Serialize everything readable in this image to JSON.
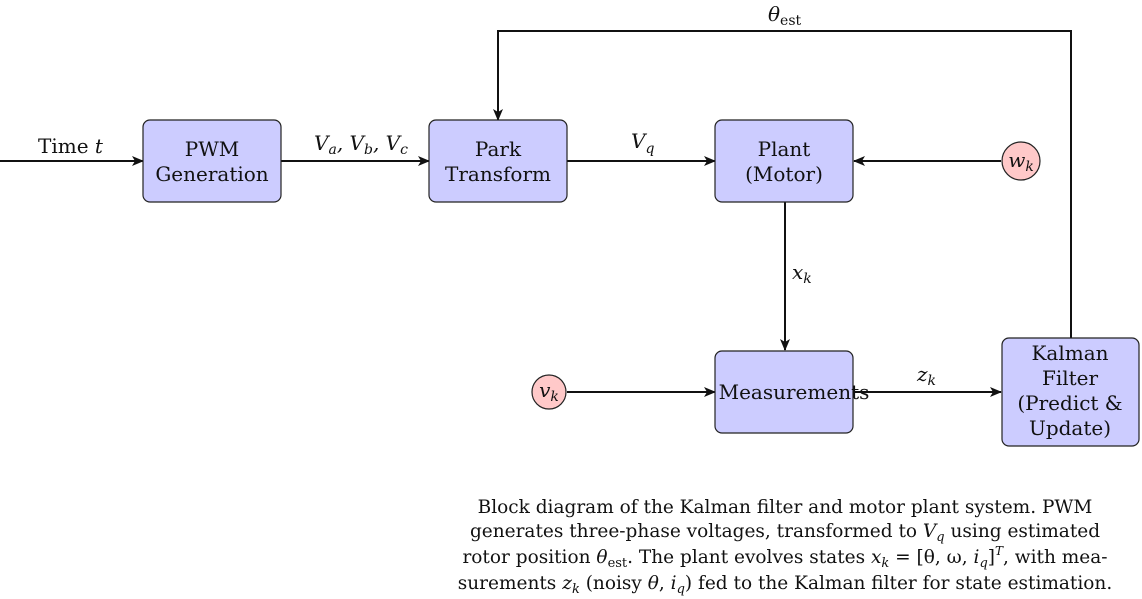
{
  "diagram": {
    "blocks": {
      "pwm": [
        "PWM",
        "Generation"
      ],
      "park": [
        "Park",
        "Transform"
      ],
      "plant": [
        "Plant",
        "(Motor)"
      ],
      "measurements": [
        "Measurements"
      ],
      "kalman": [
        "Kalman",
        "Filter",
        "(Predict &",
        "Update)"
      ]
    },
    "noise": {
      "w": {
        "base": "w",
        "sub": "k"
      },
      "v": {
        "base": "v",
        "sub": "k"
      }
    },
    "edge_labels": {
      "time": {
        "text": "Time ",
        "var": "t"
      },
      "vabc": [
        "V",
        "a",
        "V",
        "b",
        "V",
        "c"
      ],
      "vq": {
        "base": "V",
        "sub": "q"
      },
      "xk": {
        "base": "x",
        "sub": "k"
      },
      "zk": {
        "base": "z",
        "sub": "k"
      },
      "theta_est": {
        "base": "θ",
        "sub": "est"
      }
    },
    "colors": {
      "block_fill": "#ccccff",
      "noise_fill": "#ffc9c9",
      "stroke": "#111111"
    }
  },
  "caption": {
    "l1": "Block diagram of the Kalman filter and motor plant system.  PWM",
    "l2a": "generates three-phase voltages, transformed to ",
    "l2b": " using estimated",
    "l3a": "rotor position ",
    "l3b": ".  The plant evolves states ",
    "l3c": ", with mea-",
    "l4a": "surements ",
    "l4b": " (noisy ",
    "l4c": ") fed to the Kalman filter for state estimation.",
    "Vq": [
      "V",
      "q"
    ],
    "theta_est": [
      "θ",
      "est"
    ],
    "state_eq": [
      "x",
      "k",
      " = [θ, ω, ",
      "i",
      "q",
      "]",
      "T"
    ],
    "zk": [
      "z",
      "k"
    ],
    "noisy_vars": [
      "θ",
      ", ",
      "i",
      "q"
    ]
  }
}
